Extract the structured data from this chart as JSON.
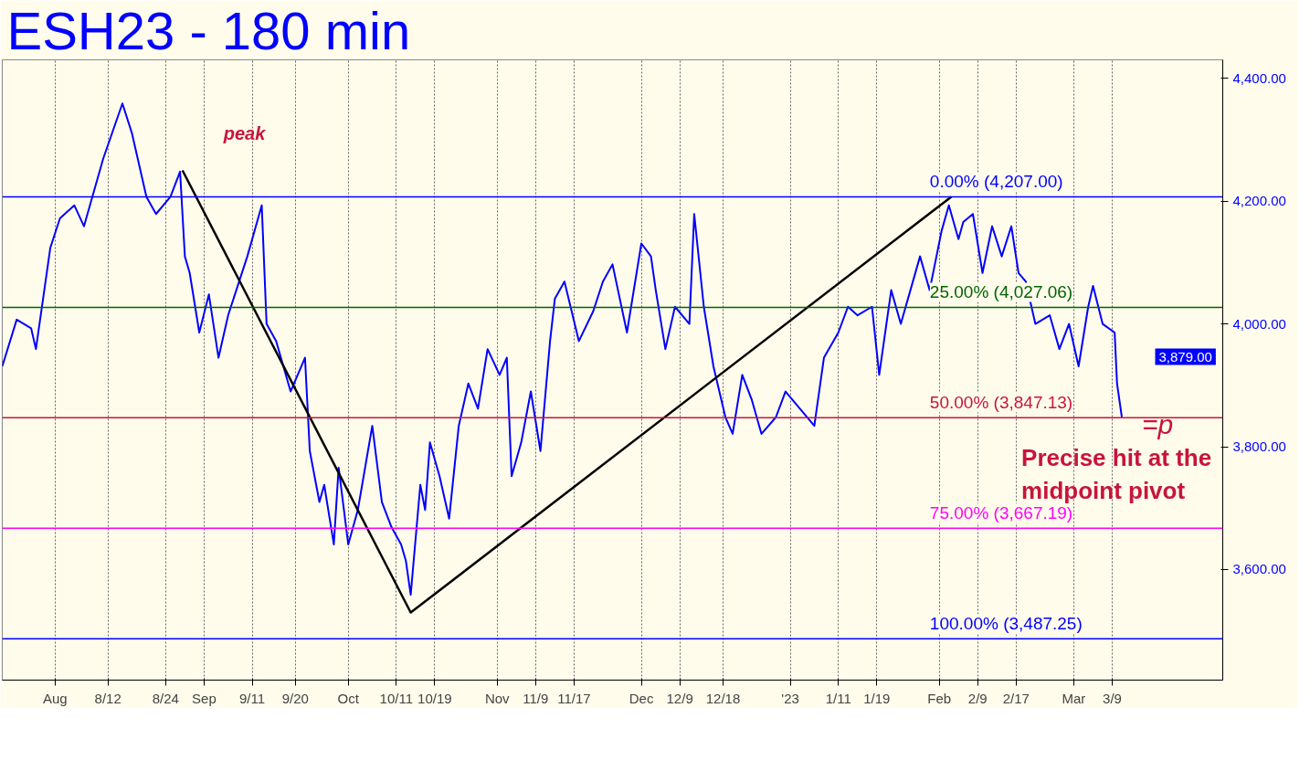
{
  "chart_data": {
    "type": "line",
    "title": "ESH23 - 180 min",
    "xlim": [
      "2022-07-21",
      "2023-04-01"
    ],
    "ylim": [
      3420,
      4430
    ],
    "xticks": [
      {
        "value": "2022-08-01",
        "label": "Aug"
      },
      {
        "value": "2022-08-12",
        "label": "8/12"
      },
      {
        "value": "2022-08-24",
        "label": "8/24"
      },
      {
        "value": "2022-09-01",
        "label": "Sep"
      },
      {
        "value": "2022-09-11",
        "label": "9/11"
      },
      {
        "value": "2022-09-20",
        "label": "9/20"
      },
      {
        "value": "2022-10-01",
        "label": "Oct"
      },
      {
        "value": "2022-10-11",
        "label": "10/11"
      },
      {
        "value": "2022-10-19",
        "label": "10/19"
      },
      {
        "value": "2022-11-01",
        "label": "Nov"
      },
      {
        "value": "2022-11-09",
        "label": "11/9"
      },
      {
        "value": "2022-11-17",
        "label": "11/17"
      },
      {
        "value": "2022-12-01",
        "label": "Dec"
      },
      {
        "value": "2022-12-09",
        "label": "12/9"
      },
      {
        "value": "2022-12-18",
        "label": "12/18"
      },
      {
        "value": "2023-01-01",
        "label": "'23"
      },
      {
        "value": "2023-01-11",
        "label": "1/11"
      },
      {
        "value": "2023-01-19",
        "label": "1/19"
      },
      {
        "value": "2023-02-01",
        "label": "Feb"
      },
      {
        "value": "2023-02-09",
        "label": "2/9"
      },
      {
        "value": "2023-02-17",
        "label": "2/17"
      },
      {
        "value": "2023-03-01",
        "label": "Mar"
      },
      {
        "value": "2023-03-09",
        "label": "3/9"
      }
    ],
    "yticks": [
      {
        "value": 3600,
        "label": "3,600.00"
      },
      {
        "value": 3800,
        "label": "3,800.00"
      },
      {
        "value": 4000,
        "label": "4,000.00"
      },
      {
        "value": 4200,
        "label": "4,200.00"
      },
      {
        "value": 4400,
        "label": "4,400.00"
      }
    ],
    "grid": "x",
    "series": [
      {
        "color": "#0000ff",
        "x": [
          "2022-07-21",
          "2022-07-24",
          "2022-07-27",
          "2022-07-28",
          "2022-07-31",
          "2022-08-02",
          "2022-08-05",
          "2022-08-07",
          "2022-08-11",
          "2022-08-15",
          "2022-08-17",
          "2022-08-20",
          "2022-08-22",
          "2022-08-25",
          "2022-08-27",
          "2022-08-28",
          "2022-08-29",
          "2022-08-31",
          "2022-09-02",
          "2022-09-04",
          "2022-09-06",
          "2022-09-10",
          "2022-09-13",
          "2022-09-14",
          "2022-09-16",
          "2022-09-19",
          "2022-09-22",
          "2022-09-23",
          "2022-09-25",
          "2022-09-26",
          "2022-09-28",
          "2022-09-29",
          "2022-10-01",
          "2022-10-03",
          "2022-10-06",
          "2022-10-08",
          "2022-10-10",
          "2022-10-12",
          "2022-10-13",
          "2022-10-14",
          "2022-10-16",
          "2022-10-17",
          "2022-10-18",
          "2022-10-20",
          "2022-10-22",
          "2022-10-24",
          "2022-10-26",
          "2022-10-28",
          "2022-10-30",
          "2022-11-01T12:00",
          "2022-11-03",
          "2022-11-04",
          "2022-11-06",
          "2022-11-08",
          "2022-11-10",
          "2022-11-12",
          "2022-11-13",
          "2022-11-15",
          "2022-11-18",
          "2022-11-21",
          "2022-11-23",
          "2022-11-25",
          "2022-11-28",
          "2022-12-01",
          "2022-12-03",
          "2022-12-04",
          "2022-12-06",
          "2022-12-08",
          "2022-12-11",
          "2022-12-12",
          "2022-12-14",
          "2022-12-16",
          "2022-12-18T12:00",
          "2022-12-20",
          "2022-12-22",
          "2022-12-24",
          "2022-12-26",
          "2022-12-29",
          "2022-12-31",
          "2023-01-03",
          "2023-01-06",
          "2023-01-08",
          "2023-01-11",
          "2023-01-13",
          "2023-01-15",
          "2023-01-18",
          "2023-01-19T12:00",
          "2023-01-22",
          "2023-01-24",
          "2023-01-26",
          "2023-01-28",
          "2023-01-30",
          "2023-02-01T12:00",
          "2023-02-03",
          "2023-02-05",
          "2023-02-06",
          "2023-02-08",
          "2023-02-10",
          "2023-02-12",
          "2023-02-14",
          "2023-02-16",
          "2023-02-17T12:00",
          "2023-02-19",
          "2023-02-21",
          "2023-02-24",
          "2023-02-26",
          "2023-02-28",
          "2023-03-02",
          "2023-03-04",
          "2023-03-05",
          "2023-03-07",
          "2023-03-09T12:00",
          "2023-03-10",
          "2023-03-11"
        ],
        "values": [
          3931,
          4007,
          3993,
          3959,
          4124,
          4172,
          4193,
          4159,
          4269,
          4359,
          4310,
          4207,
          4179,
          4207,
          4248,
          4110,
          4083,
          3986,
          4048,
          3945,
          4014,
          4110,
          4193,
          4000,
          3972,
          3890,
          3945,
          3793,
          3710,
          3738,
          3641,
          3766,
          3641,
          3697,
          3834,
          3710,
          3669,
          3641,
          3614,
          3559,
          3738,
          3697,
          3807,
          3752,
          3683,
          3834,
          3903,
          3862,
          3959,
          3917,
          3945,
          3752,
          3807,
          3890,
          3793,
          3972,
          4041,
          4069,
          3972,
          4021,
          4069,
          4097,
          3986,
          4131,
          4110,
          4055,
          3959,
          4028,
          4000,
          4179,
          4028,
          3931,
          3848,
          3821,
          3917,
          3876,
          3821,
          3848,
          3890,
          3862,
          3834,
          3945,
          3986,
          4028,
          4014,
          4028,
          3917,
          4055,
          4000,
          4055,
          4110,
          4055,
          4152,
          4193,
          4138,
          4166,
          4179,
          4083,
          4159,
          4110,
          4159,
          4083,
          4069,
          4000,
          4014,
          3959,
          4000,
          3931,
          4028,
          4062,
          4000,
          3986,
          3903,
          3848
        ]
      },
      {
        "color": "#000000",
        "x": [
          "2022-08-27T12:00",
          "2022-10-14",
          "2023-02-03T12:00"
        ],
        "values": [
          4250,
          3530,
          4207
        ]
      }
    ],
    "ref_lines": [
      {
        "axis": "y",
        "value": 4207,
        "label": "0.00% (4,207.00)",
        "color": "#0000ff"
      },
      {
        "axis": "y",
        "value": 4027.06,
        "label": "25.00% (4,027.06)",
        "color": "#006400"
      },
      {
        "axis": "y",
        "value": 3847.13,
        "label": "50.00% (3,847.13)",
        "color": "#c8143c"
      },
      {
        "axis": "y",
        "value": 3667.19,
        "label": "75.00% (3,667.19)",
        "color": "#ff00ff"
      },
      {
        "axis": "y",
        "value": 3487.25,
        "label": "100.00% (3,487.25)",
        "color": "#0000ff"
      }
    ],
    "annotations": [
      {
        "text": "peak",
        "x": "2022-08-27T12:00",
        "y": 4250
      },
      {
        "text": "=p",
        "x": "2023-03-11",
        "y": 3848
      },
      {
        "text": "Precise hit at the midpoint pivot",
        "x": "2023-03-11",
        "y": 3848
      },
      "3,879.00"
    ]
  }
}
